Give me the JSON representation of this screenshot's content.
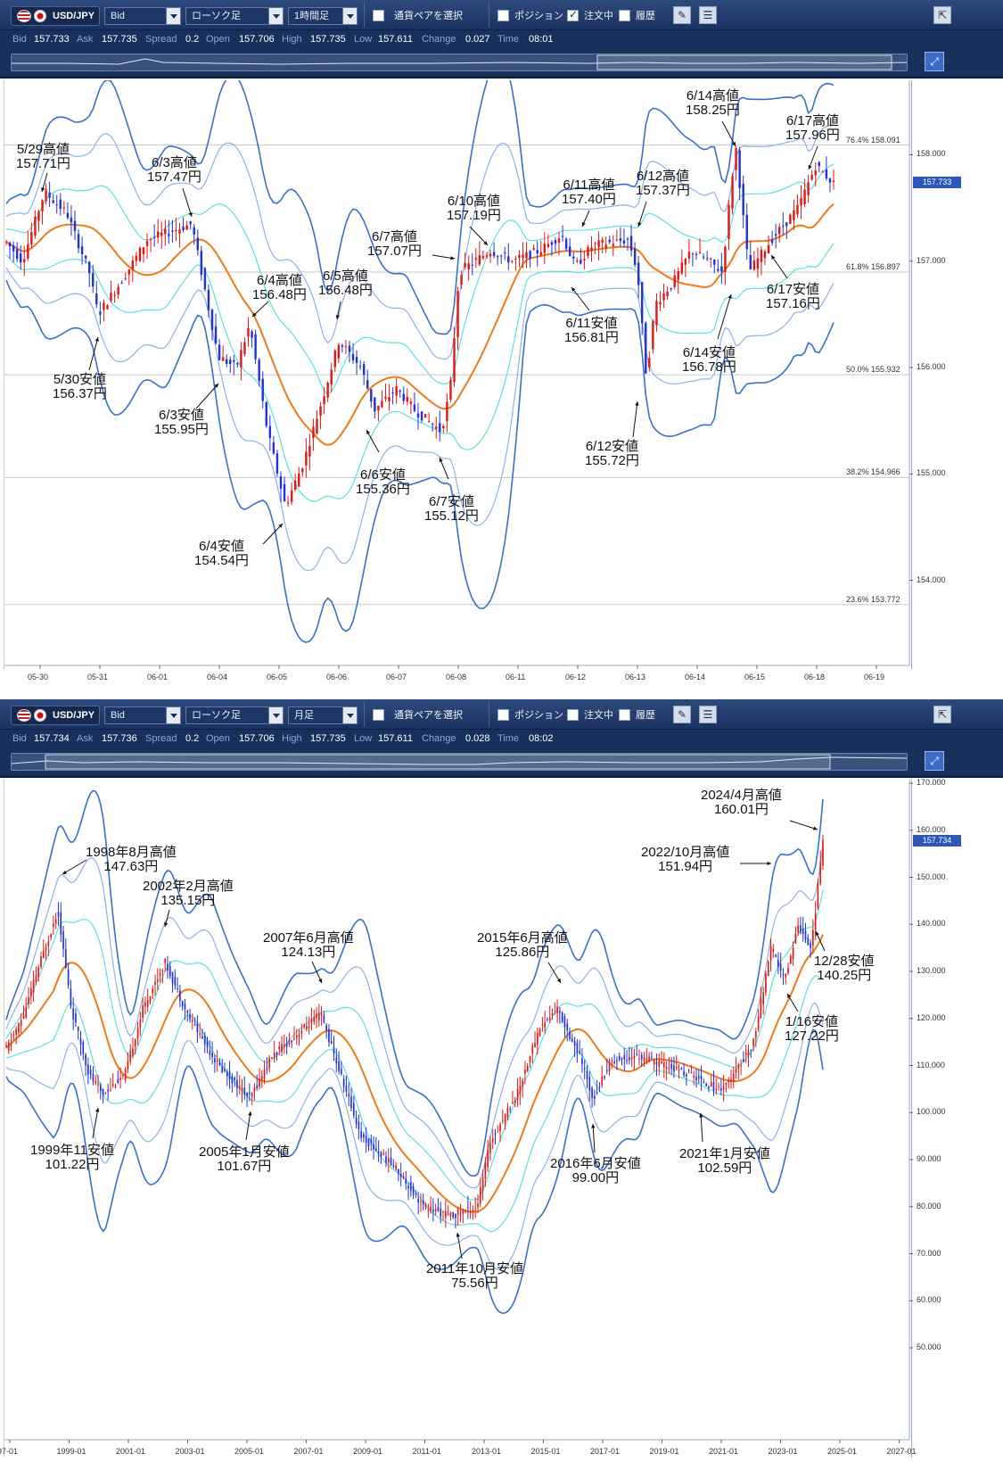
{
  "panels": [
    {
      "pair": "USD/JPY",
      "price_type": "Bid",
      "chart_type": "ローソク足",
      "interval": "1時間足",
      "select_pair_label": "通貨ペアを選択",
      "position_label": "ポジション",
      "order_label": "注文中",
      "history_label": "履歴",
      "stats": {
        "bid_label": "Bid",
        "bid": "157.733",
        "ask_label": "Ask",
        "ask": "157.735",
        "spread_label": "Spread",
        "spread": "0.2",
        "open_label": "Open",
        "open": "157.706",
        "high_label": "High",
        "high": "157.735",
        "low_label": "Low",
        "low": "157.611",
        "change_label": "Change",
        "change": "0.027",
        "time_label": "Time",
        "time": "08:01"
      },
      "current_price_tag": "157.733",
      "x_ticks": [
        "05-30",
        "05-31",
        "06-01",
        "06-04",
        "06-05",
        "06-06",
        "06-07",
        "06-08",
        "06-11",
        "06-12",
        "06-13",
        "06-14",
        "06-15",
        "06-18",
        "06-19"
      ],
      "y_ticks": [
        "158.000",
        "157.000",
        "156.000",
        "155.000",
        "154.000"
      ],
      "fib_levels": [
        {
          "pct": "76.4%",
          "price": "158.091"
        },
        {
          "pct": "61.8%",
          "price": "156.897"
        },
        {
          "pct": "50.0%",
          "price": "155.932"
        },
        {
          "pct": "38.2%",
          "price": "154.966"
        },
        {
          "pct": "23.6%",
          "price": "153.772"
        }
      ],
      "annotations": [
        {
          "label": "5/29高値",
          "value": "157.71円"
        },
        {
          "label": "6/3高値",
          "value": "157.47円"
        },
        {
          "label": "6/4高値",
          "value": "156.48円"
        },
        {
          "label": "6/5高値",
          "value": "156.48円"
        },
        {
          "label": "6/7高値",
          "value": "157.07円"
        },
        {
          "label": "6/10高値",
          "value": "157.19円"
        },
        {
          "label": "6/11高値",
          "value": "157.40円"
        },
        {
          "label": "6/12高値",
          "value": "157.37円"
        },
        {
          "label": "6/14高値",
          "value": "158.25円"
        },
        {
          "label": "6/17高値",
          "value": "157.96円"
        },
        {
          "label": "5/30安値",
          "value": "156.37円"
        },
        {
          "label": "6/3安値",
          "value": "155.95円"
        },
        {
          "label": "6/4安値",
          "value": "154.54円"
        },
        {
          "label": "6/6安値",
          "value": "155.36円"
        },
        {
          "label": "6/7安値",
          "value": "155.12円"
        },
        {
          "label": "6/11安値",
          "value": "156.81円"
        },
        {
          "label": "6/12安値",
          "value": "155.72円"
        },
        {
          "label": "6/14安値",
          "value": "156.78円"
        },
        {
          "label": "6/17安値",
          "value": "157.16円"
        }
      ]
    },
    {
      "pair": "USD/JPY",
      "price_type": "Bid",
      "chart_type": "ローソク足",
      "interval": "月足",
      "select_pair_label": "通貨ペアを選択",
      "position_label": "ポジション",
      "order_label": "注文中",
      "history_label": "履歴",
      "stats": {
        "bid_label": "Bid",
        "bid": "157.734",
        "ask_label": "Ask",
        "ask": "157.736",
        "spread_label": "Spread",
        "spread": "0.2",
        "open_label": "Open",
        "open": "157.706",
        "high_label": "High",
        "high": "157.735",
        "low_label": "Low",
        "low": "157.611",
        "change_label": "Change",
        "change": "0.028",
        "time_label": "Time",
        "time": "08:02"
      },
      "current_price_tag": "157.734",
      "x_ticks": [
        "97-01",
        "1999-01",
        "2001-01",
        "2003-01",
        "2005-01",
        "2007-01",
        "2009-01",
        "2011-01",
        "2013-01",
        "2015-01",
        "2017-01",
        "2019-01",
        "2021-01",
        "2023-01",
        "2025-01",
        "2027-01"
      ],
      "y_ticks": [
        "170.000",
        "160.000",
        "150.000",
        "140.000",
        "130.000",
        "120.000",
        "110.000",
        "100.000",
        "90.000",
        "80.000",
        "70.000",
        "60.000",
        "50.000"
      ],
      "annotations": [
        {
          "label": "1998年8月高値",
          "value": "147.63円"
        },
        {
          "label": "2002年2月高値",
          "value": "135.15円"
        },
        {
          "label": "2007年6月高値",
          "value": "124.13円"
        },
        {
          "label": "2015年6月高値",
          "value": "125.86円"
        },
        {
          "label": "2022/10月高値",
          "value": "151.94円"
        },
        {
          "label": "2024/4月高値",
          "value": "160.01円"
        },
        {
          "label": "1999年11安値",
          "value": "101.22円"
        },
        {
          "label": "2005年1月安値",
          "value": "101.67円"
        },
        {
          "label": "2011年10月安値",
          "value": "75.56円"
        },
        {
          "label": "2016年6月安値",
          "value": "99.00円"
        },
        {
          "label": "2021年1月安値",
          "value": "102.59円"
        },
        {
          "label": "12/28安値",
          "value": "140.25円"
        },
        {
          "label": "1/16安値",
          "value": "127.22円"
        }
      ]
    }
  ],
  "colors": {
    "toolbar_bg": "#1b3260",
    "bollinger_outer": "#3a6fcf",
    "bollinger_mid": "#8fb0e8",
    "bollinger_inner": "#5fe0e0",
    "moving_average": "#f07a1a",
    "candle_up": "#e01818",
    "candle_down": "#2231d8",
    "grid": "#c8c8c8"
  },
  "chart_data": [
    {
      "type": "candlestick",
      "interval": "1時間足",
      "x": [
        "05-30",
        "05-31",
        "06-01",
        "06-04",
        "06-05",
        "06-06",
        "06-07",
        "06-08",
        "06-11",
        "06-12",
        "06-13",
        "06-14",
        "06-15",
        "06-18",
        "06-19"
      ],
      "ylim": [
        153.2,
        158.7
      ],
      "grid": true,
      "annotated_points": [
        {
          "x": "5/29",
          "kind": "high",
          "y": 157.71
        },
        {
          "x": "5/30",
          "kind": "low",
          "y": 156.37
        },
        {
          "x": "6/3",
          "kind": "high",
          "y": 157.47
        },
        {
          "x": "6/3",
          "kind": "low",
          "y": 155.95
        },
        {
          "x": "6/4",
          "kind": "high",
          "y": 156.48
        },
        {
          "x": "6/4",
          "kind": "low",
          "y": 154.54
        },
        {
          "x": "6/5",
          "kind": "high",
          "y": 156.48
        },
        {
          "x": "6/6",
          "kind": "low",
          "y": 155.36
        },
        {
          "x": "6/7",
          "kind": "high",
          "y": 157.07
        },
        {
          "x": "6/7",
          "kind": "low",
          "y": 155.12
        },
        {
          "x": "6/10",
          "kind": "high",
          "y": 157.19
        },
        {
          "x": "6/11",
          "kind": "high",
          "y": 157.4
        },
        {
          "x": "6/11",
          "kind": "low",
          "y": 156.81
        },
        {
          "x": "6/12",
          "kind": "high",
          "y": 157.37
        },
        {
          "x": "6/12",
          "kind": "low",
          "y": 155.72
        },
        {
          "x": "6/14",
          "kind": "high",
          "y": 158.25
        },
        {
          "x": "6/14",
          "kind": "low",
          "y": 156.78
        },
        {
          "x": "6/17",
          "kind": "high",
          "y": 157.96
        },
        {
          "x": "6/17",
          "kind": "low",
          "y": 157.16
        }
      ],
      "fib_levels": [
        158.091,
        156.897,
        155.932,
        154.966,
        153.772
      ],
      "last": 157.733
    },
    {
      "type": "candlestick",
      "interval": "月足",
      "x": [
        "97-01",
        "1999-01",
        "2001-01",
        "2003-01",
        "2005-01",
        "2007-01",
        "2009-01",
        "2011-01",
        "2013-01",
        "2015-01",
        "2017-01",
        "2019-01",
        "2021-01",
        "2023-01",
        "2025-01",
        "2027-01"
      ],
      "ylim": [
        50,
        170
      ],
      "grid": false,
      "annotated_points": [
        {
          "x": "1998-08",
          "kind": "high",
          "y": 147.63
        },
        {
          "x": "1999-11",
          "kind": "low",
          "y": 101.22
        },
        {
          "x": "2002-02",
          "kind": "high",
          "y": 135.15
        },
        {
          "x": "2005-01",
          "kind": "low",
          "y": 101.67
        },
        {
          "x": "2007-06",
          "kind": "high",
          "y": 124.13
        },
        {
          "x": "2011-10",
          "kind": "low",
          "y": 75.56
        },
        {
          "x": "2015-06",
          "kind": "high",
          "y": 125.86
        },
        {
          "x": "2016-06",
          "kind": "low",
          "y": 99.0
        },
        {
          "x": "2021-01",
          "kind": "low",
          "y": 102.59
        },
        {
          "x": "2022-10",
          "kind": "high",
          "y": 151.94
        },
        {
          "x": "2023-01",
          "kind": "low",
          "y": 127.22
        },
        {
          "x": "2023-12",
          "kind": "low",
          "y": 140.25
        },
        {
          "x": "2024-04",
          "kind": "high",
          "y": 160.01
        }
      ],
      "last": 157.734
    }
  ]
}
